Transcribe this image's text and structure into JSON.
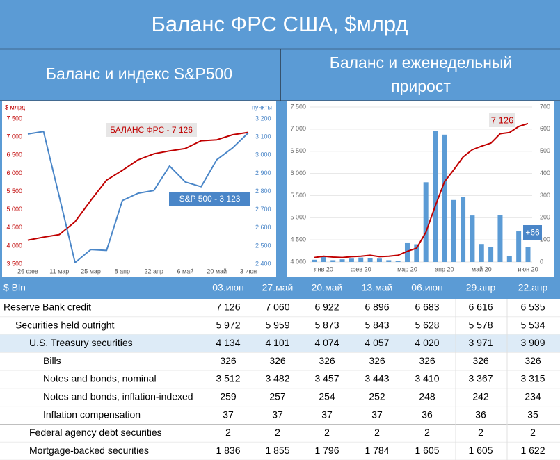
{
  "header": {
    "title": "Баланс ФРС США, $млрд",
    "subtitle_left": [
      "Баланс и индекс S&P500"
    ],
    "subtitle_right": [
      "Баланс и еженедельный",
      "прирост"
    ]
  },
  "chart_data": [
    {
      "type": "line",
      "y_label": "$ млрд",
      "y2_label": "пункты",
      "axis_colors": true,
      "categories": [
        "26 фев",
        null,
        "11 мар",
        null,
        "25 мар",
        null,
        "8 апр",
        null,
        "22 апр",
        null,
        "6 май",
        null,
        "20 май",
        null,
        "3 июн"
      ],
      "series": [
        {
          "type": "line",
          "color": "#c00000",
          "values": [
            4159,
            4240,
            4311,
            4666,
            5255,
            5810,
            6080,
            6370,
            6535,
            6616,
            6683,
            6896,
            6922,
            7060,
            7126
          ]
        },
        {
          "type": "line",
          "color": "#4a86c8",
          "axis": "y2",
          "values": [
            3116,
            3130,
            2770,
            2408,
            2480,
            2475,
            2750,
            2790,
            2805,
            2940,
            2852,
            2826,
            2975,
            3040,
            3123
          ]
        }
      ],
      "ylim": [
        3500,
        7500
      ],
      "yticks": [
        {
          "value": 3500,
          "label": "3 500"
        },
        {
          "value": 4000,
          "label": "4 000"
        },
        {
          "value": 4500,
          "label": "4 500"
        },
        {
          "value": 5000,
          "label": "5 000"
        },
        {
          "value": 5500,
          "label": "5 500"
        },
        {
          "value": 6000,
          "label": "6 000"
        },
        {
          "value": 6500,
          "label": "6 500"
        },
        {
          "value": 7000,
          "label": "7 000"
        },
        {
          "value": 7500,
          "label": "7 500"
        }
      ],
      "y2lim": [
        2400,
        3200
      ],
      "y2ticks": [
        {
          "value": 2400,
          "label": "2 400"
        },
        {
          "value": 2500,
          "label": "2 500"
        },
        {
          "value": 2600,
          "label": "2 600"
        },
        {
          "value": 2700,
          "label": "2 700"
        },
        {
          "value": 2800,
          "label": "2 800"
        },
        {
          "value": 2900,
          "label": "2 900"
        },
        {
          "value": 3000,
          "label": "3 000"
        },
        {
          "value": 3100,
          "label": "3 100"
        },
        {
          "value": 3200,
          "label": "3 200"
        }
      ],
      "grid": false,
      "annotations": [
        "БАЛАНС ФРС - 7 126",
        "S&P 500 - 3 123"
      ]
    },
    {
      "type": "combo",
      "axis_colors": false,
      "categories": [
        null,
        "янв 20",
        null,
        null,
        null,
        "фев 20",
        null,
        null,
        null,
        null,
        "мар 20",
        null,
        null,
        null,
        "апр 20",
        null,
        null,
        null,
        "май 20",
        null,
        null,
        null,
        null,
        "июн 20"
      ],
      "series": [
        {
          "type": "bar",
          "color": "#5b9bd5",
          "axis": "y2",
          "values": [
            10,
            28,
            8,
            12,
            15,
            20,
            18,
            15,
            8,
            5,
            88,
            80,
            360,
            593,
            575,
            280,
            292,
            210,
            81,
            67,
            213,
            26,
            138,
            66
          ]
        },
        {
          "type": "line",
          "color": "#c00000",
          "values": [
            4100,
            4130,
            4110,
            4100,
            4120,
            4130,
            4150,
            4120,
            4130,
            4150,
            4240,
            4310,
            4670,
            5255,
            5810,
            6080,
            6370,
            6535,
            6616,
            6683,
            6896,
            6922,
            7060,
            7126
          ]
        }
      ],
      "ylim": [
        4000,
        7500
      ],
      "yticks": [
        {
          "value": 4000,
          "label": "4 000"
        },
        {
          "value": 4500,
          "label": "4 500"
        },
        {
          "value": 5000,
          "label": "5 000"
        },
        {
          "value": 5500,
          "label": "5 500"
        },
        {
          "value": 6000,
          "label": "6 000"
        },
        {
          "value": 6500,
          "label": "6 500"
        },
        {
          "value": 7000,
          "label": "7 000"
        },
        {
          "value": 7500,
          "label": "7 500"
        }
      ],
      "y2lim": [
        0,
        700
      ],
      "y2ticks": [
        0,
        100,
        200,
        300,
        400,
        500,
        600,
        700
      ],
      "grid": true,
      "annotations": [
        "7 126",
        "+66"
      ]
    }
  ],
  "table": {
    "header": [
      "$ Bln",
      "03.июн",
      "27.май",
      "20.май",
      "13.май",
      "06.июн",
      "29.апр",
      "22.апр"
    ],
    "rows": [
      [
        "Reserve Bank credit",
        "7 126",
        "7 060",
        "6 922",
        "6 896",
        "6 683",
        "6 616",
        "6 535"
      ],
      [
        "Securities held outright",
        "5 972",
        "5 959",
        "5 873",
        "5 843",
        "5 628",
        "5 578",
        "5 534"
      ],
      [
        "U.S. Treasury securities",
        "4 134",
        "4 101",
        "4 074",
        "4 057",
        "4 020",
        "3 971",
        "3 909"
      ],
      [
        "Bills",
        "326",
        "326",
        "326",
        "326",
        "326",
        "326",
        "326"
      ],
      [
        "Notes and bonds, nominal",
        "3 512",
        "3 482",
        "3 457",
        "3 443",
        "3 410",
        "3 367",
        "3 315"
      ],
      [
        "Notes and bonds, inflation-indexed",
        "259",
        "257",
        "254",
        "252",
        "248",
        "242",
        "234"
      ],
      [
        "Inflation compensation",
        "37",
        "37",
        "37",
        "37",
        "36",
        "36",
        "35"
      ],
      [
        "Federal agency debt securities",
        "2",
        "2",
        "2",
        "2",
        "2",
        "2",
        "2"
      ],
      [
        "Mortgage-backed securities",
        "1 836",
        "1 855",
        "1 796",
        "1 784",
        "1 605",
        "1 605",
        "1 622"
      ]
    ]
  }
}
